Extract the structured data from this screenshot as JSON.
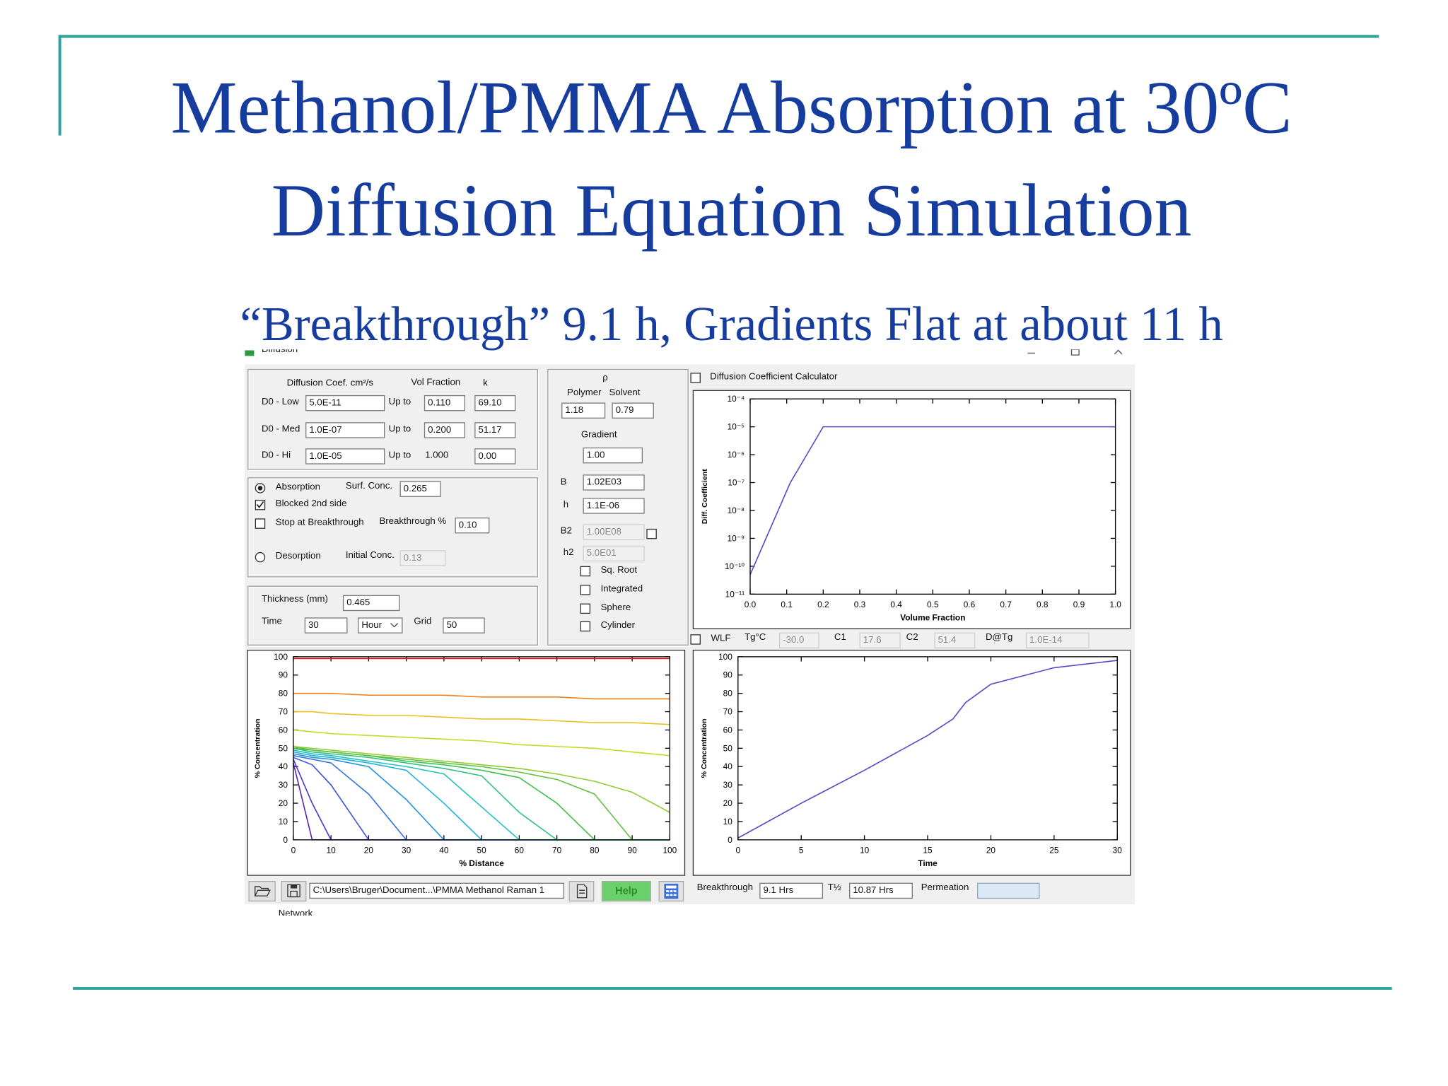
{
  "slide": {
    "title": [
      "Methanol/PMMA Absorption at 30ºC",
      "Diffusion Equation Simulation"
    ],
    "subtitle": "“Breakthrough” 9.1 h, Gradients Flat at about 11 h"
  },
  "window": {
    "title": "Diffusion"
  },
  "form": {
    "coef_header": "Diffusion Coef. cm²/s",
    "vf_header": "Vol Fraction",
    "k_header": "k",
    "rows": [
      [
        "D0 - Low",
        "5.0E-11",
        "Up to",
        "0.110",
        "69.10"
      ],
      [
        "D0 - Med",
        "1.0E-07",
        "Up to",
        "0.200",
        "51.17"
      ],
      [
        "D0 - Hi",
        "1.0E-05",
        "Up to",
        "1.000",
        "0.00"
      ]
    ],
    "absorption": "Absorption",
    "surf_conc": "Surf. Conc.",
    "surf_conc_value": "0.265",
    "blocked": "Blocked 2nd side",
    "stop": "Stop at Breakthrough",
    "breakthrough_pct": "Breakthrough %",
    "breakthrough_pct_value": "0.10",
    "desorption": "Desorption",
    "initial_conc": "Initial Conc.",
    "initial_conc_value": "0.13",
    "thickness": "Thickness (mm)",
    "thickness_value": "0.465",
    "time": "Time",
    "time_value": "30",
    "time_unit": "Hour",
    "grid": "Grid",
    "grid_value": "50",
    "rho": "ρ",
    "polymer": "Polymer",
    "solvent": "Solvent",
    "polymer_value": "1.18",
    "solvent_value": "0.79",
    "gradient": "Gradient",
    "gradient_value": "1.00",
    "b": "B",
    "b_value": "1.02E03",
    "h": "h",
    "h_value": "1.1E-06",
    "b2": "B2",
    "b2_value": "1.00E08",
    "h2": "h2",
    "h2_value": "5.0E01",
    "sq_root": "Sq. Root",
    "integrated": "Integrated",
    "sphere": "Sphere",
    "cylinder": "Cylinder",
    "calculator": "Diffusion Coefficient Calculator",
    "wlf": "WLF",
    "tg": "Tg°C",
    "tg_value": "-30.0",
    "c1": "C1",
    "c1_value": "17.6",
    "c2": "C2",
    "c2_value": "51.4",
    "dtg": "D@Tg",
    "dtg_value": "1.0E-14",
    "path": "C:\\Users\\Bruger\\Document...\\PMMA Methanol Raman 1",
    "help": "Help",
    "breakthrough": "Breakthrough",
    "breakthrough_value": "9.1 Hrs",
    "half": "T½",
    "half_value": "10.87 Hrs",
    "permeation": "Permeation"
  },
  "taskbar": {
    "network": "Network"
  },
  "chart_data": [
    {
      "type": "line",
      "log_y": true,
      "x_label": "Volume Fraction",
      "y_label": "Diff. Coefficient",
      "x": [
        0,
        0.11,
        0.2,
        1.0
      ],
      "xlim": [
        0,
        1
      ],
      "xticks": [
        {
          "value": 0,
          "label": "0.0"
        },
        0.1,
        0.2,
        0.3,
        0.4,
        0.5,
        0.6,
        0.7,
        0.8,
        0.9,
        {
          "value": 1,
          "label": "1.0"
        }
      ],
      "ylim": [
        1e-11,
        0.0001
      ],
      "yticks": [
        {
          "value": 1e-11,
          "label": "10⁻¹¹"
        },
        {
          "value": 1e-10,
          "label": "10⁻¹⁰"
        },
        {
          "value": 1e-09,
          "label": "10⁻⁹"
        },
        {
          "value": 1e-08,
          "label": "10⁻⁸"
        },
        {
          "value": 1e-07,
          "label": "10⁻⁷"
        },
        {
          "value": 1e-06,
          "label": "10⁻⁶"
        },
        {
          "value": 1e-05,
          "label": "10⁻⁵"
        },
        {
          "value": 0.0001,
          "label": "10⁻⁴"
        }
      ],
      "series": [
        {
          "color": "#5b45c8",
          "values": [
            5e-11,
            1e-07,
            1e-05,
            1e-05
          ]
        }
      ]
    },
    {
      "type": "line",
      "x_label": "% Distance",
      "y_label": "% Concentration",
      "x": [
        0,
        5,
        10,
        20,
        30,
        40,
        50,
        60,
        70,
        80,
        90,
        100
      ],
      "xlim": [
        0,
        100
      ],
      "xticks": [
        0,
        10,
        20,
        30,
        40,
        50,
        60,
        70,
        80,
        90,
        100
      ],
      "ylim": [
        0,
        100
      ],
      "yticks": [
        0,
        10,
        20,
        30,
        40,
        50,
        60,
        70,
        80,
        90,
        100
      ],
      "series": [
        {
          "color": "#5a1fb4",
          "values": [
            42,
            0,
            0,
            0,
            0,
            0,
            0,
            0,
            0,
            0,
            0,
            0
          ]
        },
        {
          "color": "#4b2fd0",
          "values": [
            44,
            20,
            0,
            0,
            0,
            0,
            0,
            0,
            0,
            0,
            0,
            0
          ]
        },
        {
          "color": "#3b4fe0",
          "values": [
            45,
            41,
            30,
            0,
            0,
            0,
            0,
            0,
            0,
            0,
            0,
            0
          ]
        },
        {
          "color": "#2f70e0",
          "values": [
            46,
            44,
            42,
            25,
            0,
            0,
            0,
            0,
            0,
            0,
            0,
            0
          ]
        },
        {
          "color": "#2490e0",
          "values": [
            47,
            45,
            44,
            40,
            22,
            0,
            0,
            0,
            0,
            0,
            0,
            0
          ]
        },
        {
          "color": "#20b0e0",
          "values": [
            48,
            46,
            45,
            42,
            38,
            20,
            0,
            0,
            0,
            0,
            0,
            0
          ]
        },
        {
          "color": "#25c0c0",
          "values": [
            49,
            47,
            46,
            43,
            40,
            36,
            18,
            0,
            0,
            0,
            0,
            0
          ]
        },
        {
          "color": "#30c080",
          "values": [
            50,
            48,
            47,
            45,
            42,
            39,
            35,
            15,
            0,
            0,
            0,
            0
          ]
        },
        {
          "color": "#40c050",
          "values": [
            50,
            49,
            48,
            46,
            43,
            41,
            38,
            34,
            20,
            0,
            0,
            0
          ]
        },
        {
          "color": "#60c040",
          "values": [
            51,
            49,
            48,
            46,
            44,
            42,
            40,
            37,
            33,
            25,
            0,
            0
          ]
        },
        {
          "color": "#90cc30",
          "values": [
            51,
            50,
            49,
            47,
            45,
            43,
            41,
            39,
            36,
            32,
            26,
            15
          ]
        },
        {
          "color": "#c8d820",
          "values": [
            60,
            59,
            58,
            57,
            56,
            55,
            54,
            52,
            51,
            50,
            48,
            46
          ]
        },
        {
          "color": "#e8c020",
          "values": [
            70,
            70,
            69,
            68,
            68,
            67,
            66,
            66,
            65,
            64,
            64,
            63
          ]
        },
        {
          "color": "#f08020",
          "values": [
            80,
            80,
            80,
            79,
            79,
            79,
            78,
            78,
            78,
            77,
            77,
            77
          ]
        },
        {
          "color": "#e01010",
          "values": [
            99,
            99,
            99,
            99,
            99,
            99,
            99,
            99,
            99,
            99,
            99,
            99
          ]
        }
      ]
    },
    {
      "type": "line",
      "x_label": "Time",
      "y_label": "% Concentration",
      "x": [
        0,
        5,
        10,
        15,
        17,
        18,
        20,
        25,
        30
      ],
      "xlim": [
        0,
        30
      ],
      "xticks": [
        0,
        5,
        10,
        15,
        20,
        25,
        30
      ],
      "ylim": [
        0,
        100
      ],
      "yticks": [
        0,
        10,
        20,
        30,
        40,
        50,
        60,
        70,
        80,
        90,
        100
      ],
      "series": [
        {
          "color": "#5b45c8",
          "values": [
            1,
            20,
            38,
            57,
            66,
            75,
            85,
            94,
            98
          ]
        }
      ]
    }
  ]
}
